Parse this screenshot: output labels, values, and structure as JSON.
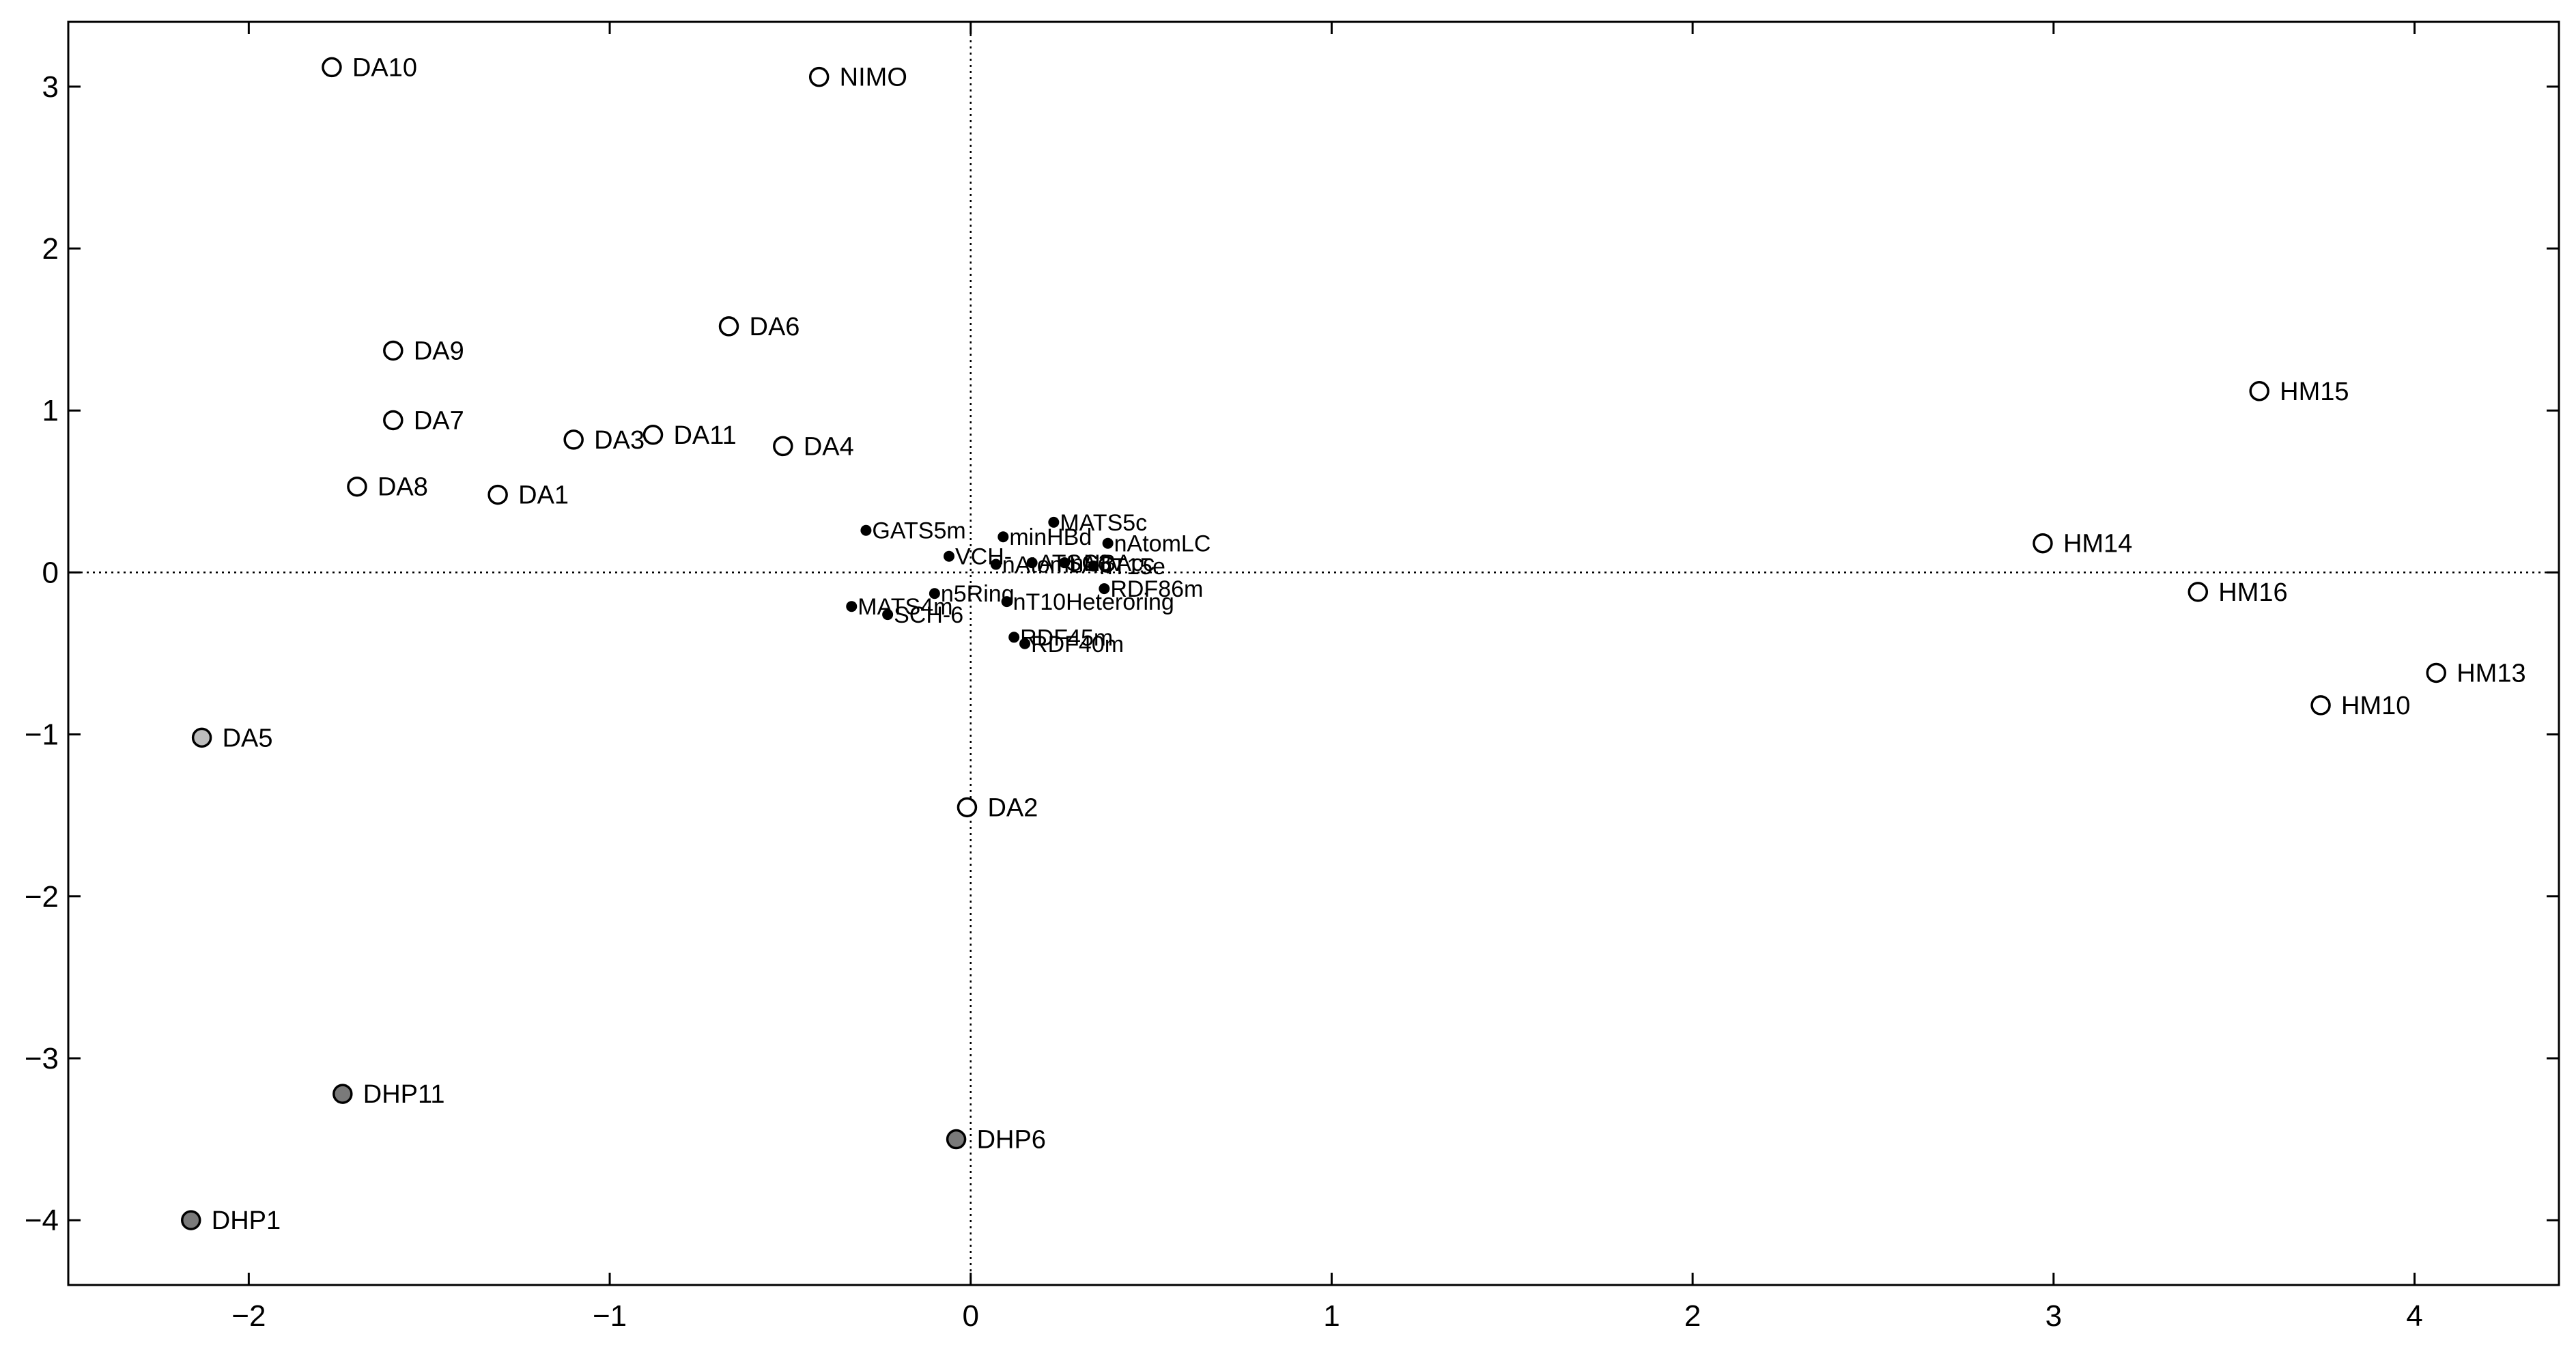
{
  "chart_data": {
    "type": "scatter",
    "title": "",
    "xlabel": "",
    "ylabel": "",
    "xlim": [
      -2.5,
      4.4
    ],
    "ylim": [
      -4.4,
      3.4
    ],
    "x_ticks": [
      -2,
      -1,
      0,
      1,
      2,
      3,
      4
    ],
    "y_ticks": [
      -4,
      -3,
      -2,
      -1,
      0,
      1,
      2,
      3
    ],
    "grid": false,
    "zero_lines": true,
    "legend": "none",
    "colors": {
      "open": "#ffffff",
      "light": "#bdbdbd",
      "dark": "#7a7a7a",
      "variable": "#000000",
      "axis": "#000000"
    },
    "series": [
      {
        "marker": "open-circle",
        "points": [
          {
            "label": "DA10",
            "x": -1.77,
            "y": 3.12
          },
          {
            "label": "NIMO",
            "x": -0.42,
            "y": 3.06
          },
          {
            "label": "DA6",
            "x": -0.67,
            "y": 1.52
          },
          {
            "label": "DA9",
            "x": -1.6,
            "y": 1.37
          },
          {
            "label": "DA7",
            "x": -1.6,
            "y": 0.94
          },
          {
            "label": "DA3",
            "x": -1.1,
            "y": 0.82
          },
          {
            "label": "DA11",
            "x": -0.88,
            "y": 0.85
          },
          {
            "label": "DA4",
            "x": -0.52,
            "y": 0.78
          },
          {
            "label": "DA8",
            "x": -1.7,
            "y": 0.53
          },
          {
            "label": "DA1",
            "x": -1.31,
            "y": 0.48
          },
          {
            "label": "DA2",
            "x": -0.01,
            "y": -1.45
          },
          {
            "label": "HM15",
            "x": 3.57,
            "y": 1.12
          },
          {
            "label": "HM14",
            "x": 2.97,
            "y": 0.18
          },
          {
            "label": "HM16",
            "x": 3.4,
            "y": -0.12
          },
          {
            "label": "HM13",
            "x": 4.06,
            "y": -0.62
          },
          {
            "label": "HM10",
            "x": 3.74,
            "y": -0.82
          }
        ]
      },
      {
        "marker": "light-filled-circle",
        "points": [
          {
            "label": "DA5",
            "x": -2.13,
            "y": -1.02
          }
        ]
      },
      {
        "marker": "dark-filled-circle",
        "points": [
          {
            "label": "DHP11",
            "x": -1.74,
            "y": -3.22
          },
          {
            "label": "DHP6",
            "x": -0.04,
            "y": -3.5
          },
          {
            "label": "DHP1",
            "x": -2.16,
            "y": -4.0
          }
        ]
      },
      {
        "marker": "variable-dot",
        "points": [
          {
            "label": "GATS5m",
            "x": -0.29,
            "y": 0.26
          },
          {
            "label": "MATS5c",
            "x": 0.23,
            "y": 0.31
          },
          {
            "label": "minHBd",
            "x": 0.09,
            "y": 0.22
          },
          {
            "label": "nAtomLC",
            "x": 0.38,
            "y": 0.18
          },
          {
            "label": "VCH-",
            "x": -0.06,
            "y": 0.1
          },
          {
            "label": "nAtomLAC",
            "x": 0.07,
            "y": 0.05
          },
          {
            "label": "ATSC3v",
            "x": 0.17,
            "y": 0.06
          },
          {
            "label": "nHBAcc",
            "x": 0.26,
            "y": 0.06
          },
          {
            "label": "nT15e",
            "x": 0.34,
            "y": 0.04
          },
          {
            "label": "RDF86m",
            "x": 0.37,
            "y": -0.1
          },
          {
            "label": "n5Ring",
            "x": -0.1,
            "y": -0.13
          },
          {
            "label": "nT10Heteroring",
            "x": 0.1,
            "y": -0.18
          },
          {
            "label": "MATS4m",
            "x": -0.33,
            "y": -0.21
          },
          {
            "label": "SCH-6",
            "x": -0.23,
            "y": -0.26
          },
          {
            "label": "RDF45m",
            "x": 0.12,
            "y": -0.4
          },
          {
            "label": "RDF40m",
            "x": 0.15,
            "y": -0.44
          }
        ]
      }
    ]
  }
}
